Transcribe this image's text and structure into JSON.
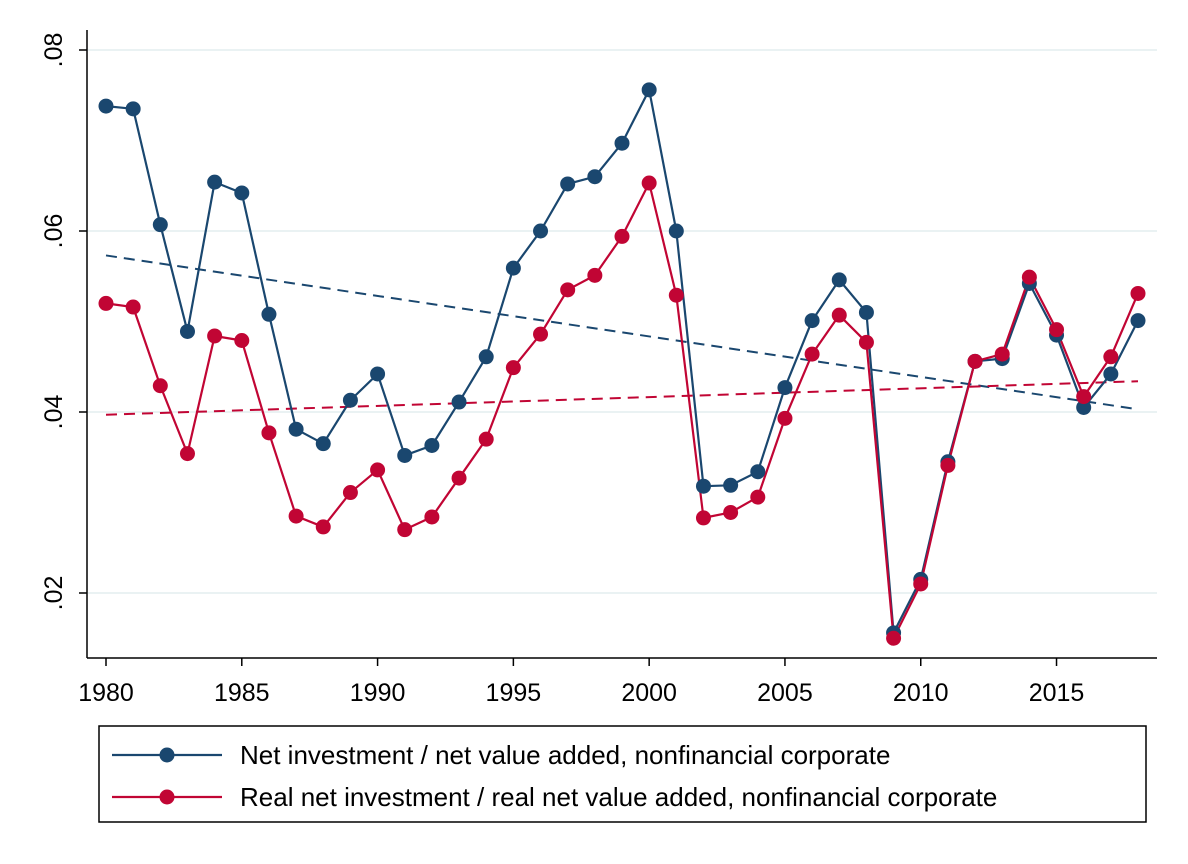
{
  "chart_data": {
    "type": "line",
    "title": "",
    "xlabel": "",
    "ylabel": "",
    "xlim": [
      1980,
      2018
    ],
    "ylim": [
      0.014,
      0.08
    ],
    "x_ticks": [
      1980,
      1985,
      1990,
      1995,
      2000,
      2005,
      2010,
      2015
    ],
    "x_tick_labels": [
      "1980",
      "1985",
      "1990",
      "1995",
      "2000",
      "2005",
      "2010",
      "2015"
    ],
    "y_ticks": [
      0.02,
      0.04,
      0.06,
      0.08
    ],
    "y_tick_labels": [
      ".02",
      ".04",
      ".06",
      ".08"
    ],
    "grid": true,
    "legend_position": "bottom",
    "x": [
      1980,
      1981,
      1982,
      1983,
      1984,
      1985,
      1986,
      1987,
      1988,
      1989,
      1990,
      1991,
      1992,
      1993,
      1994,
      1995,
      1996,
      1997,
      1998,
      1999,
      2000,
      2001,
      2002,
      2003,
      2004,
      2005,
      2006,
      2007,
      2008,
      2009,
      2010,
      2011,
      2012,
      2013,
      2014,
      2015,
      2016,
      2017,
      2018
    ],
    "series": [
      {
        "name": "Net investment / net value added, nonfinancial corporate",
        "color": "#1a476f",
        "values": [
          0.0738,
          0.0735,
          0.0607,
          0.0489,
          0.0654,
          0.0642,
          0.0508,
          0.0381,
          0.0365,
          0.0413,
          0.0442,
          0.0352,
          0.0363,
          0.0411,
          0.0461,
          0.0559,
          0.06,
          0.0652,
          0.066,
          0.0697,
          0.0756,
          0.06,
          0.0318,
          0.0319,
          0.0334,
          0.0427,
          0.0501,
          0.0546,
          0.051,
          0.0156,
          0.0215,
          0.0345,
          0.0456,
          0.0459,
          0.0542,
          0.0485,
          0.0405,
          0.0442,
          0.0501
        ],
        "trend": [
          0.0573,
          0.0403
        ]
      },
      {
        "name": "Real net investment / real net value added, nonfinancial corporate",
        "color": "#c10534",
        "values": [
          0.052,
          0.0516,
          0.0429,
          0.0354,
          0.0484,
          0.0479,
          0.0377,
          0.0285,
          0.0273,
          0.0311,
          0.0336,
          0.027,
          0.0284,
          0.0327,
          0.037,
          0.0449,
          0.0486,
          0.0535,
          0.0551,
          0.0594,
          0.0653,
          0.0529,
          0.0283,
          0.0289,
          0.0306,
          0.0393,
          0.0464,
          0.0507,
          0.0477,
          0.015,
          0.021,
          0.0341,
          0.0456,
          0.0464,
          0.0549,
          0.0491,
          0.0417,
          0.0461,
          0.0531
        ],
        "trend": [
          0.0397,
          0.0434
        ]
      }
    ]
  }
}
